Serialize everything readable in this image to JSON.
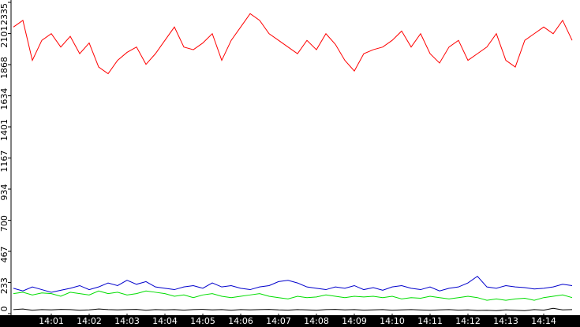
{
  "chart_data": {
    "type": "line",
    "categories": [
      null,
      null,
      null,
      null,
      "14:01",
      null,
      null,
      null,
      "14:02",
      null,
      null,
      null,
      "14:03",
      null,
      null,
      null,
      "14:04",
      null,
      null,
      null,
      "14:05",
      null,
      null,
      null,
      "14:06",
      null,
      null,
      null,
      "14:07",
      null,
      null,
      null,
      "14:08",
      null,
      null,
      null,
      "14:09",
      null,
      null,
      null,
      "14:10",
      null,
      null,
      null,
      "14:11",
      null,
      null,
      null,
      "14:12",
      null,
      null,
      null,
      "14:13",
      null,
      null,
      null,
      "14:14",
      null,
      null,
      null
    ],
    "series": [
      {
        "color": "#ff0000",
        "values": [
          2150,
          2200,
          1900,
          2050,
          2100,
          2000,
          2080,
          1950,
          2030,
          1850,
          1800,
          1900,
          1960,
          2000,
          1870,
          1950,
          2050,
          2150,
          2000,
          1980,
          2030,
          2100,
          1900,
          2050,
          2150,
          2250,
          2200,
          2100,
          2050,
          2000,
          1950,
          2050,
          1980,
          2100,
          2020,
          1900,
          1820,
          1950,
          1980,
          2000,
          2050,
          2120,
          2000,
          2100,
          1950,
          1880,
          2000,
          2050,
          1900,
          1950,
          2000,
          2100,
          1900,
          1850,
          2050,
          2100,
          2150,
          2100,
          2200,
          2050
        ]
      },
      {
        "color": "#0000cc",
        "values": [
          190,
          170,
          200,
          180,
          160,
          175,
          190,
          210,
          180,
          200,
          230,
          210,
          250,
          220,
          240,
          200,
          190,
          180,
          200,
          210,
          190,
          230,
          200,
          210,
          190,
          180,
          200,
          210,
          240,
          250,
          230,
          200,
          190,
          180,
          200,
          190,
          210,
          180,
          195,
          175,
          200,
          210,
          190,
          180,
          200,
          170,
          190,
          200,
          230,
          280,
          200,
          190,
          210,
          200,
          195,
          185,
          190,
          200,
          220,
          210
        ]
      },
      {
        "color": "#00dd00",
        "values": [
          150,
          160,
          140,
          155,
          150,
          130,
          160,
          150,
          140,
          170,
          150,
          160,
          140,
          150,
          170,
          160,
          150,
          130,
          140,
          120,
          140,
          150,
          130,
          120,
          130,
          140,
          150,
          130,
          120,
          110,
          130,
          120,
          125,
          140,
          130,
          120,
          130,
          125,
          130,
          120,
          130,
          110,
          120,
          115,
          130,
          120,
          110,
          120,
          130,
          120,
          100,
          110,
          100,
          110,
          115,
          100,
          120,
          130,
          140,
          120
        ]
      },
      {
        "color": "#000000",
        "values": [
          30,
          35,
          25,
          30,
          28,
          32,
          30,
          25,
          28,
          35,
          30,
          28,
          30,
          32,
          25,
          30,
          28,
          30,
          26,
          30,
          32,
          28,
          30,
          25,
          30,
          28,
          30,
          32,
          28,
          26,
          30,
          28,
          25,
          30,
          32,
          28,
          30,
          26,
          28,
          30,
          25,
          28,
          30,
          27,
          25,
          28,
          30,
          26,
          28,
          24,
          25,
          22,
          28,
          25,
          22,
          30,
          26,
          40,
          28,
          30
        ]
      }
    ],
    "ylim": [
      0,
      2335
    ],
    "yticks": [
      0,
      233,
      467,
      700,
      934,
      1167,
      1401,
      1634,
      1868,
      2101,
      2335
    ]
  }
}
